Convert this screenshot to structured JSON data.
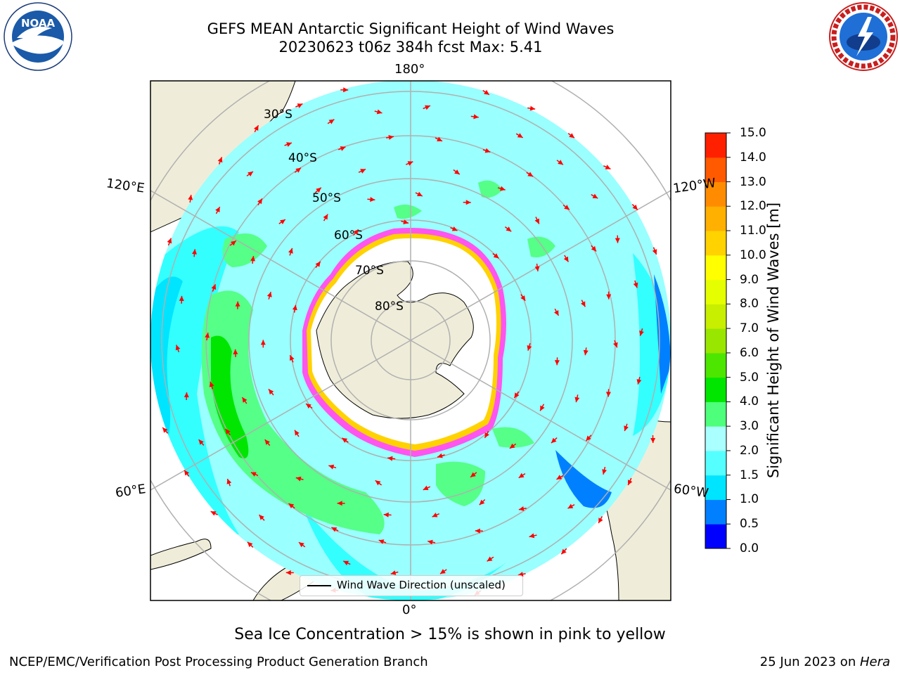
{
  "title": {
    "line1": "GEFS MEAN Antarctic Significant Height of Wind Waves",
    "line2": "20230623 t06z 384h fcst   Max: 5.41"
  },
  "map": {
    "projection": "south-polar-stereographic",
    "lon_labels": {
      "top": "180°",
      "left_upper": "120°E",
      "right_upper": "120°W",
      "left_lower": "60°E",
      "right_lower": "60°W",
      "bottom": "0°"
    },
    "lat_labels": [
      "30°S",
      "40°S",
      "50°S",
      "60°S",
      "70°S",
      "80°S"
    ],
    "legend_label": "Wind Wave Direction (unscaled)",
    "arrow_color": "#ff0000"
  },
  "colorbar": {
    "title": "Significant Height of Wind Waves [m]",
    "ticks": [
      "0.0",
      "0.5",
      "1.0",
      "1.5",
      "2.0",
      "3.0",
      "4.0",
      "5.0",
      "6.0",
      "7.0",
      "8.0",
      "9.0",
      "10.0",
      "11.0",
      "12.0",
      "13.0",
      "14.0",
      "15.0"
    ],
    "colors": [
      "#0000ff",
      "#0080ff",
      "#00e5ff",
      "#55ffff",
      "#aaffff",
      "#4dff7a",
      "#00e600",
      "#4ce600",
      "#99e600",
      "#c8ee00",
      "#e6ff00",
      "#ffff00",
      "#ffd200",
      "#ffb000",
      "#ff8c00",
      "#ff5a00",
      "#ff2000"
    ]
  },
  "colors": {
    "land": "#efedd9",
    "ice": "#ffffff",
    "ice_edge_pink": "#ff55ee",
    "ice_edge_yellow": "#ffd200",
    "ocean_main": "#99ffff",
    "ocean_low": "#33ffff",
    "ocean_mid": "#55ff88"
  },
  "subtitle": "Sea Ice Concentration > 15% is shown in pink to yellow",
  "footer": {
    "left": "NCEP/EMC/Verification Post Processing Product Generation Branch",
    "right_prefix": "25 Jun 2023 on ",
    "right_host": "Hera"
  },
  "logos": {
    "noaa": "NOAA",
    "nws": "NATIONAL WEATHER SERVICE"
  }
}
